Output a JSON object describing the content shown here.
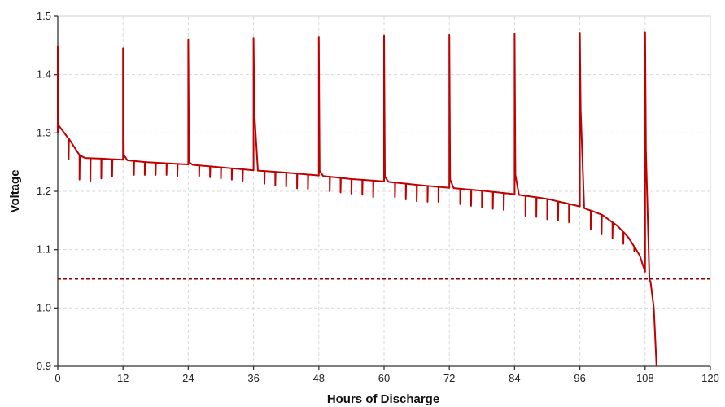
{
  "chart_data": {
    "type": "line",
    "title": "",
    "xlabel": "Hours of Discharge",
    "ylabel": "Voltage",
    "xlim": [
      0,
      120
    ],
    "ylim": [
      0.9,
      1.5
    ],
    "x_ticks": [
      0,
      12,
      24,
      36,
      48,
      60,
      72,
      84,
      96,
      108,
      120
    ],
    "y_ticks": [
      0.9,
      1.0,
      1.1,
      1.2,
      1.3,
      1.4,
      1.5
    ],
    "x_tick_labels": [
      "0",
      "12",
      "24",
      "36",
      "48",
      "60",
      "72",
      "84",
      "96",
      "108",
      "120"
    ],
    "y_tick_labels": [
      "0.9",
      "1.0",
      "1.1",
      "1.2",
      "1.3",
      "1.4",
      "1.5"
    ],
    "grid": true,
    "legend": "none",
    "line_color": "#c00000",
    "cutoff_color": "#8b0000",
    "series": [
      {
        "baseline": [
          [
            0,
            1.315
          ],
          [
            2,
            1.29
          ],
          [
            4,
            1.262
          ],
          [
            5,
            1.257
          ],
          [
            8,
            1.256
          ],
          [
            12,
            1.254
          ],
          [
            16,
            1.25
          ],
          [
            24,
            1.246
          ],
          [
            30,
            1.241
          ],
          [
            36,
            1.236
          ],
          [
            42,
            1.232
          ],
          [
            48,
            1.227
          ],
          [
            54,
            1.221
          ],
          [
            60,
            1.217
          ],
          [
            66,
            1.211
          ],
          [
            72,
            1.206
          ],
          [
            78,
            1.201
          ],
          [
            84,
            1.195
          ],
          [
            90,
            1.187
          ],
          [
            96,
            1.174
          ],
          [
            100,
            1.16
          ],
          [
            103,
            1.14
          ],
          [
            105,
            1.12
          ],
          [
            107,
            1.09
          ],
          [
            108,
            1.062
          ],
          [
            109,
            1.045
          ],
          [
            109.6,
            1.0
          ],
          [
            110.1,
            0.9
          ]
        ],
        "spikes": [
          {
            "x": 0,
            "peak": 1.45,
            "recovery": 1.3
          },
          {
            "x": 12,
            "peak": 1.445,
            "recovery": 1.262
          },
          {
            "x": 24,
            "peak": 1.46,
            "recovery": 1.25
          },
          {
            "x": 36,
            "peak": 1.462,
            "recovery": 1.335
          },
          {
            "x": 48,
            "peak": 1.465,
            "recovery": 1.235
          },
          {
            "x": 60,
            "peak": 1.467,
            "recovery": 1.225
          },
          {
            "x": 72,
            "peak": 1.468,
            "recovery": 1.22
          },
          {
            "x": 84,
            "peak": 1.47,
            "recovery": 1.228
          },
          {
            "x": 96,
            "peak": 1.472,
            "recovery": 1.34
          },
          {
            "x": 108,
            "peak": 1.473,
            "recovery": 1.27
          }
        ],
        "dips": [
          {
            "x": 2,
            "min": 1.255
          },
          {
            "x": 4,
            "min": 1.22
          },
          {
            "x": 6,
            "min": 1.218
          },
          {
            "x": 8,
            "min": 1.222
          },
          {
            "x": 10,
            "min": 1.225
          },
          {
            "x": 14,
            "min": 1.228
          },
          {
            "x": 16,
            "min": 1.228
          },
          {
            "x": 18,
            "min": 1.228
          },
          {
            "x": 20,
            "min": 1.228
          },
          {
            "x": 22,
            "min": 1.226
          },
          {
            "x": 26,
            "min": 1.226
          },
          {
            "x": 28,
            "min": 1.224
          },
          {
            "x": 30,
            "min": 1.222
          },
          {
            "x": 32,
            "min": 1.22
          },
          {
            "x": 34,
            "min": 1.218
          },
          {
            "x": 38,
            "min": 1.213
          },
          {
            "x": 40,
            "min": 1.21
          },
          {
            "x": 42,
            "min": 1.208
          },
          {
            "x": 44,
            "min": 1.205
          },
          {
            "x": 46,
            "min": 1.204
          },
          {
            "x": 50,
            "min": 1.2
          },
          {
            "x": 52,
            "min": 1.198
          },
          {
            "x": 54,
            "min": 1.196
          },
          {
            "x": 56,
            "min": 1.194
          },
          {
            "x": 58,
            "min": 1.19
          },
          {
            "x": 62,
            "min": 1.19
          },
          {
            "x": 64,
            "min": 1.186
          },
          {
            "x": 66,
            "min": 1.183
          },
          {
            "x": 68,
            "min": 1.182
          },
          {
            "x": 70,
            "min": 1.182
          },
          {
            "x": 74,
            "min": 1.178
          },
          {
            "x": 76,
            "min": 1.175
          },
          {
            "x": 78,
            "min": 1.172
          },
          {
            "x": 80,
            "min": 1.17
          },
          {
            "x": 82,
            "min": 1.168
          },
          {
            "x": 86,
            "min": 1.158
          },
          {
            "x": 88,
            "min": 1.156
          },
          {
            "x": 90,
            "min": 1.152
          },
          {
            "x": 92,
            "min": 1.15
          },
          {
            "x": 94,
            "min": 1.147
          },
          {
            "x": 98,
            "min": 1.135
          },
          {
            "x": 100,
            "min": 1.126
          },
          {
            "x": 102,
            "min": 1.12
          },
          {
            "x": 104,
            "min": 1.11
          },
          {
            "x": 106,
            "min": 1.098
          }
        ]
      }
    ],
    "cutoff": {
      "y": 1.05,
      "style": "dashed"
    }
  }
}
